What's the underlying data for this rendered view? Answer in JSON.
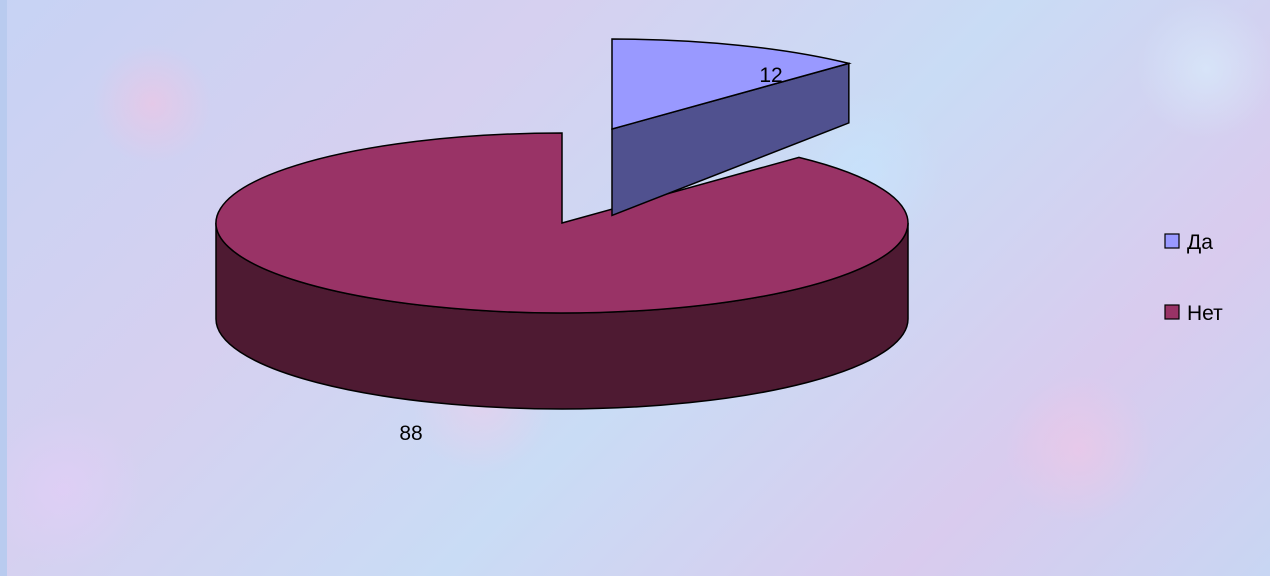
{
  "slide": {
    "title": ""
  },
  "chart_data": {
    "type": "pie",
    "style": "3d-exploded",
    "categories": [
      "Да",
      "Нет"
    ],
    "values": [
      12,
      88
    ],
    "data_labels": [
      "12",
      "88"
    ],
    "title": "",
    "legend": {
      "placement": "right",
      "entries": [
        "Да",
        "Нет"
      ]
    },
    "colors": {
      "Да": "#9999ff",
      "Нет": "#993366"
    },
    "side_colors": {
      "Да": "#50518f",
      "Нет": "#4e1a32"
    }
  }
}
